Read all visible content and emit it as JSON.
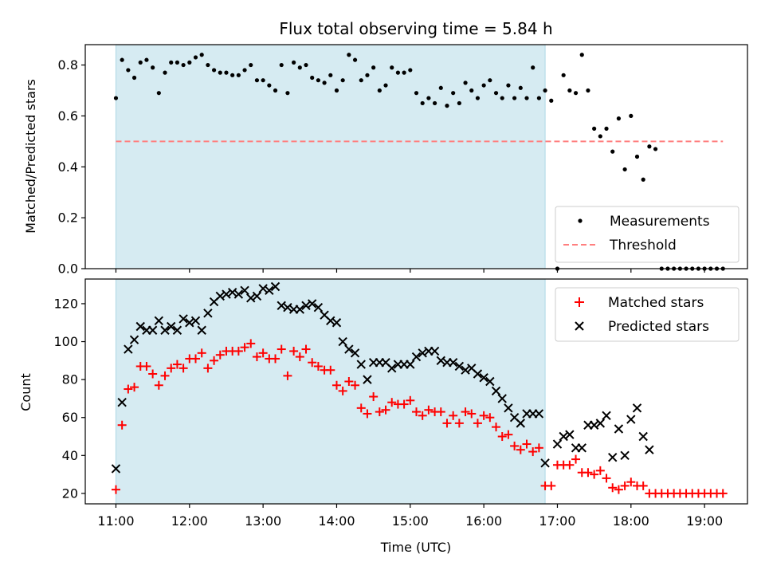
{
  "chart_data": [
    {
      "type": "scatter",
      "title": "Flux total observing time = 5.84 h",
      "xlabel": "",
      "ylabel": "Matched/Predicted stars",
      "xlim": [
        "10:35",
        "19:35"
      ],
      "ylim": [
        0,
        0.88
      ],
      "yticks": [
        "0.0",
        "0.2",
        "0.4",
        "0.6",
        "0.8"
      ],
      "grid": false,
      "legend": {
        "placement": "lower-right",
        "entries": [
          "Measurements",
          "Threshold"
        ]
      },
      "observing_window": {
        "start": "11:00",
        "end": "16:50",
        "color": "#add8e6"
      },
      "threshold": {
        "name": "Threshold",
        "value": 0.5,
        "x_start": "11:00",
        "x_end": "19:15",
        "color": "#ff7f7f"
      },
      "series": [
        {
          "name": "Measurements",
          "marker": "dot",
          "color": "#000000",
          "x": [
            "11:00",
            "11:05",
            "11:10",
            "11:15",
            "11:20",
            "11:25",
            "11:30",
            "11:35",
            "11:40",
            "11:45",
            "11:50",
            "11:55",
            "12:00",
            "12:05",
            "12:10",
            "12:15",
            "12:20",
            "12:25",
            "12:30",
            "12:35",
            "12:40",
            "12:45",
            "12:50",
            "12:55",
            "13:00",
            "13:05",
            "13:10",
            "13:15",
            "13:20",
            "13:25",
            "13:30",
            "13:35",
            "13:40",
            "13:45",
            "13:50",
            "13:55",
            "14:00",
            "14:05",
            "14:10",
            "14:15",
            "14:20",
            "14:25",
            "14:30",
            "14:35",
            "14:40",
            "14:45",
            "14:50",
            "14:55",
            "15:00",
            "15:05",
            "15:10",
            "15:15",
            "15:20",
            "15:25",
            "15:30",
            "15:35",
            "15:40",
            "15:45",
            "15:50",
            "15:55",
            "16:00",
            "16:05",
            "16:10",
            "16:15",
            "16:20",
            "16:25",
            "16:30",
            "16:35",
            "16:40",
            "16:45",
            "16:50",
            "16:55",
            "17:00",
            "17:05",
            "17:10",
            "17:15",
            "17:20",
            "17:25",
            "17:30",
            "17:35",
            "17:40",
            "17:45",
            "17:50",
            "17:55",
            "18:00",
            "18:05",
            "18:10",
            "18:15",
            "18:20",
            "18:25",
            "18:30",
            "18:35",
            "18:40",
            "18:45",
            "18:50",
            "18:55",
            "19:00",
            "19:05",
            "19:10",
            "19:15"
          ],
          "y": [
            0.67,
            0.82,
            0.78,
            0.75,
            0.81,
            0.82,
            0.79,
            0.69,
            0.77,
            0.81,
            0.81,
            0.8,
            0.81,
            0.83,
            0.84,
            0.8,
            0.78,
            0.77,
            0.77,
            0.76,
            0.76,
            0.78,
            0.8,
            0.74,
            0.74,
            0.72,
            0.7,
            0.8,
            0.69,
            0.81,
            0.79,
            0.8,
            0.75,
            0.74,
            0.73,
            0.76,
            0.7,
            0.74,
            0.84,
            0.82,
            0.74,
            0.76,
            0.79,
            0.7,
            0.72,
            0.79,
            0.77,
            0.77,
            0.78,
            0.69,
            0.65,
            0.67,
            0.65,
            0.71,
            0.64,
            0.69,
            0.65,
            0.73,
            0.7,
            0.67,
            0.72,
            0.74,
            0.69,
            0.67,
            0.72,
            0.67,
            0.71,
            0.67,
            0.79,
            0.67,
            0.7,
            0.66,
            0.0,
            0.76,
            0.7,
            0.69,
            0.84,
            0.7,
            0.55,
            0.52,
            0.55,
            0.46,
            0.59,
            0.39,
            0.6,
            0.44,
            0.35,
            0.48,
            0.47,
            0.0,
            0.0,
            0.0,
            0.0,
            0.0,
            0.0,
            0.0,
            0.0,
            0.0,
            0.0,
            0.0
          ]
        }
      ]
    },
    {
      "type": "scatter",
      "title": "",
      "xlabel": "Time (UTC)",
      "ylabel": "Count",
      "xlim": [
        "10:35",
        "19:35"
      ],
      "ylim": [
        14.5,
        133
      ],
      "xticks": [
        "11:00",
        "12:00",
        "13:00",
        "14:00",
        "15:00",
        "16:00",
        "17:00",
        "18:00",
        "19:00"
      ],
      "yticks": [
        "20",
        "40",
        "60",
        "80",
        "100",
        "120"
      ],
      "grid": false,
      "legend": {
        "placement": "top-right",
        "entries": [
          "Matched stars",
          "Predicted stars"
        ]
      },
      "observing_window": {
        "start": "11:00",
        "end": "16:50",
        "color": "#add8e6"
      },
      "series": [
        {
          "name": "Matched stars",
          "marker": "plus",
          "color": "#ff0000",
          "x": [
            "11:00",
            "11:05",
            "11:10",
            "11:15",
            "11:20",
            "11:25",
            "11:30",
            "11:35",
            "11:40",
            "11:45",
            "11:50",
            "11:55",
            "12:00",
            "12:05",
            "12:10",
            "12:15",
            "12:20",
            "12:25",
            "12:30",
            "12:35",
            "12:40",
            "12:45",
            "12:50",
            "12:55",
            "13:00",
            "13:05",
            "13:10",
            "13:15",
            "13:20",
            "13:25",
            "13:30",
            "13:35",
            "13:40",
            "13:45",
            "13:50",
            "13:55",
            "14:00",
            "14:05",
            "14:10",
            "14:15",
            "14:20",
            "14:25",
            "14:30",
            "14:35",
            "14:40",
            "14:45",
            "14:50",
            "14:55",
            "15:00",
            "15:05",
            "15:10",
            "15:15",
            "15:20",
            "15:25",
            "15:30",
            "15:35",
            "15:40",
            "15:45",
            "15:50",
            "15:55",
            "16:00",
            "16:05",
            "16:10",
            "16:15",
            "16:20",
            "16:25",
            "16:30",
            "16:35",
            "16:40",
            "16:45",
            "16:50",
            "16:55",
            "17:00",
            "17:05",
            "17:10",
            "17:15",
            "17:20",
            "17:25",
            "17:30",
            "17:35",
            "17:40",
            "17:45",
            "17:50",
            "17:55",
            "18:00",
            "18:05",
            "18:10",
            "18:15",
            "18:20",
            "18:25",
            "18:30",
            "18:35",
            "18:40",
            "18:45",
            "18:50",
            "18:55",
            "19:00",
            "19:05",
            "19:10",
            "19:15"
          ],
          "y": [
            22,
            56,
            75,
            76,
            87,
            87,
            83,
            77,
            82,
            86,
            88,
            86,
            91,
            91,
            94,
            86,
            90,
            93,
            95,
            95,
            95,
            97,
            99,
            92,
            94,
            91,
            91,
            96,
            82,
            95,
            92,
            96,
            89,
            87,
            85,
            85,
            77,
            74,
            79,
            77,
            65,
            62,
            71,
            63,
            64,
            68,
            67,
            67,
            69,
            63,
            61,
            64,
            63,
            63,
            57,
            61,
            57,
            63,
            62,
            57,
            61,
            60,
            55,
            50,
            51,
            45,
            43,
            46,
            42,
            44,
            24,
            24,
            35,
            35,
            35,
            38,
            31,
            31,
            30,
            32,
            28,
            23,
            22,
            24,
            26,
            24,
            24,
            20,
            20,
            20,
            20,
            20,
            20,
            20,
            20,
            20,
            20,
            20,
            20,
            20
          ]
        },
        {
          "name": "Predicted stars",
          "marker": "x",
          "color": "#000000",
          "x": [
            "11:00",
            "11:05",
            "11:10",
            "11:15",
            "11:20",
            "11:25",
            "11:30",
            "11:35",
            "11:40",
            "11:45",
            "11:50",
            "11:55",
            "12:00",
            "12:05",
            "12:10",
            "12:15",
            "12:20",
            "12:25",
            "12:30",
            "12:35",
            "12:40",
            "12:45",
            "12:50",
            "12:55",
            "13:00",
            "13:05",
            "13:10",
            "13:15",
            "13:20",
            "13:25",
            "13:30",
            "13:35",
            "13:40",
            "13:45",
            "13:50",
            "13:55",
            "14:00",
            "14:05",
            "14:10",
            "14:15",
            "14:20",
            "14:25",
            "14:30",
            "14:35",
            "14:40",
            "14:45",
            "14:50",
            "14:55",
            "15:00",
            "15:05",
            "15:10",
            "15:15",
            "15:20",
            "15:25",
            "15:30",
            "15:35",
            "15:40",
            "15:45",
            "15:50",
            "15:55",
            "16:00",
            "16:05",
            "16:10",
            "16:15",
            "16:20",
            "16:25",
            "16:30",
            "16:35",
            "16:40",
            "16:45",
            "16:50",
            "17:00",
            "17:05",
            "17:10",
            "17:15",
            "17:20",
            "17:25",
            "17:30",
            "17:35",
            "17:40",
            "17:45",
            "17:50",
            "17:55",
            "18:00",
            "18:05",
            "18:10",
            "18:15"
          ],
          "y": [
            33,
            68,
            96,
            101,
            108,
            106,
            106,
            111,
            106,
            108,
            106,
            112,
            110,
            111,
            106,
            115,
            121,
            124,
            125,
            126,
            125,
            127,
            123,
            124,
            128,
            127,
            129,
            119,
            118,
            117,
            117,
            119,
            120,
            118,
            114,
            111,
            110,
            100,
            96,
            94,
            88,
            80,
            89,
            89,
            89,
            86,
            88,
            88,
            88,
            92,
            94,
            95,
            95,
            90,
            89,
            89,
            87,
            85,
            86,
            83,
            81,
            79,
            74,
            70,
            65,
            60,
            57,
            62,
            62,
            62,
            36,
            46,
            50,
            51,
            44,
            44,
            56,
            56,
            57,
            61,
            39,
            54,
            40,
            59,
            65,
            50,
            43
          ]
        }
      ]
    }
  ]
}
